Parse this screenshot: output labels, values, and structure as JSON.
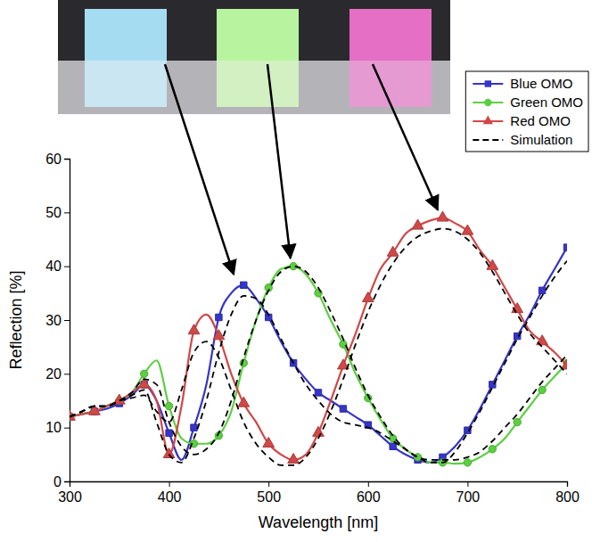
{
  "chart_data": {
    "type": "line",
    "x_label": "Wavelength [nm]",
    "y_label": "Reflection [%]",
    "x": [
      300,
      312.5,
      325,
      337.5,
      350,
      362.5,
      375,
      387.5,
      400,
      412.5,
      425,
      437.5,
      450,
      462.5,
      475,
      487.5,
      500,
      512.5,
      525,
      537.5,
      550,
      562.5,
      575,
      587.5,
      600,
      612.5,
      625,
      637.5,
      650,
      662.5,
      675,
      687.5,
      700,
      712.5,
      725,
      737.5,
      750,
      762.5,
      775,
      787.5,
      800
    ],
    "xlim": [
      300,
      800
    ],
    "xticks": [
      300,
      400,
      500,
      600,
      700,
      800
    ],
    "ylim": [
      0,
      60
    ],
    "yticks": [
      0,
      10,
      20,
      30,
      40,
      50,
      60
    ],
    "grid": false,
    "legend": "top right",
    "series": [
      {
        "name": "Blue OMO",
        "color": "#3535c8",
        "marker": "square",
        "line_style": "solid",
        "values": [
          12,
          12.5,
          13,
          13.5,
          14.5,
          16,
          18,
          15,
          9,
          4,
          10,
          18,
          30.5,
          35,
          36.5,
          34,
          30.5,
          26,
          22,
          19,
          16.5,
          15,
          13.5,
          12,
          10.5,
          8.5,
          6.5,
          5,
          4,
          3.5,
          4.5,
          6.5,
          9.5,
          13.5,
          18,
          22.5,
          27,
          31,
          35.5,
          39.5,
          43.5
        ]
      },
      {
        "name": "Green OMO",
        "color": "#5ccf40",
        "marker": "circle",
        "line_style": "solid",
        "values": [
          12,
          12.5,
          13,
          14,
          15,
          16.5,
          20,
          22.5,
          14,
          8,
          7,
          7,
          8.5,
          13,
          22,
          30,
          36,
          39.5,
          40,
          38.5,
          35,
          30,
          25.5,
          20,
          15.5,
          11.5,
          8,
          6,
          4.5,
          3.5,
          3.5,
          3.3,
          3.5,
          4.5,
          6,
          8,
          11,
          14,
          17,
          19.5,
          22
        ]
      },
      {
        "name": "Red OMO",
        "color": "#d04848",
        "marker": "triangle",
        "line_style": "solid",
        "values": [
          12,
          12.5,
          13,
          14,
          15,
          16.5,
          18,
          15,
          5,
          14,
          28,
          31,
          27,
          20,
          14.5,
          11,
          7,
          5,
          4,
          5,
          9,
          15,
          21.5,
          27.5,
          34,
          39.5,
          42.5,
          46,
          47.5,
          48.5,
          49,
          48,
          46.5,
          43,
          40,
          36,
          32,
          28,
          26,
          24,
          21.5
        ]
      },
      {
        "name": "Simulation",
        "color": "#000000",
        "line_style": "dashed",
        "values": [
          12,
          13,
          14,
          14,
          15,
          16,
          17,
          11,
          5,
          3.5,
          8,
          15,
          24,
          31,
          34.5,
          34,
          31,
          26.5,
          22,
          18,
          15,
          12.5,
          11,
          10.5,
          10,
          9,
          7.5,
          6,
          4.5,
          3.5,
          3.5,
          5.5,
          9,
          13,
          17.5,
          22,
          26.5,
          30.5,
          34.5,
          38,
          41
        ]
      },
      {
        "name": "Simulation",
        "color": "#000000",
        "line_style": "dashed",
        "values": [
          12,
          13,
          14,
          14,
          15,
          16.5,
          19,
          18,
          11,
          6.5,
          5,
          6,
          9,
          15,
          23,
          30,
          35.5,
          39,
          40,
          39,
          36,
          31.5,
          26.5,
          21,
          16,
          12,
          8.5,
          6,
          4.5,
          4,
          4,
          4,
          4.5,
          5.5,
          7.5,
          10,
          12.5,
          15.5,
          18.5,
          21,
          23.5
        ]
      },
      {
        "name": "Simulation",
        "color": "#000000",
        "line_style": "dashed",
        "values": [
          12,
          13,
          14,
          14,
          15,
          15.5,
          16,
          13,
          11,
          17,
          24,
          26,
          23,
          17,
          11,
          7,
          4.5,
          3,
          3,
          4.5,
          8,
          13,
          19,
          25.5,
          31.5,
          36.5,
          40.5,
          43.5,
          45.5,
          46.5,
          47,
          46.5,
          45,
          42.5,
          39,
          35,
          31,
          27.5,
          25,
          22.5,
          20
        ]
      }
    ]
  }
}
